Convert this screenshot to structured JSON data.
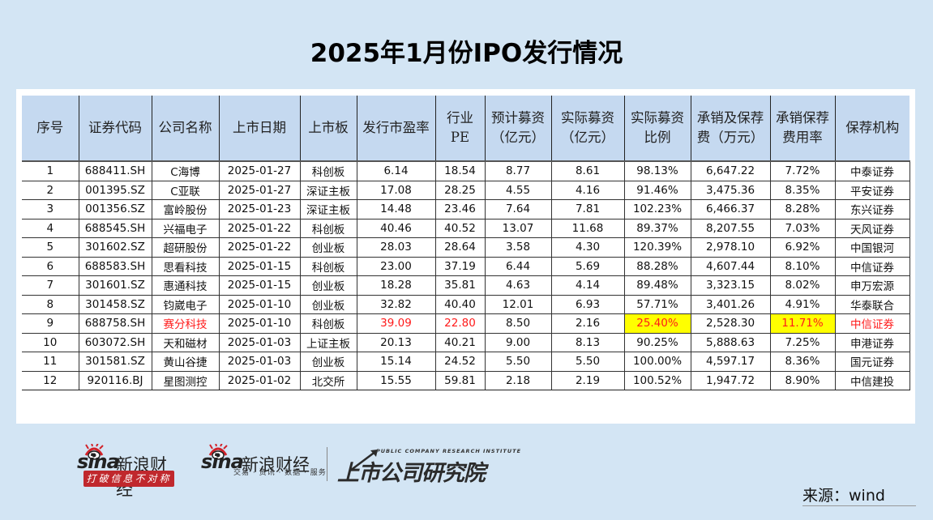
{
  "title": "2025年1月份IPO发行情况",
  "table": {
    "headers": [
      "序号",
      "证券代码",
      "公司名称",
      "上市日期",
      "上市板",
      "发行市盈率",
      "行业PE",
      "预计募资\n（亿元）",
      "实际募资\n（亿元）",
      "实际募资\n比例",
      "承销及保荐\n费（万元）",
      "承销保荐\n费用率",
      "保荐机构"
    ],
    "rows": [
      [
        "1",
        "688411.SH",
        "C海博",
        "2025-01-27",
        "科创板",
        "6.14",
        "18.54",
        "8.77",
        "8.61",
        "98.13%",
        "6,647.22",
        "7.72%",
        "中泰证券"
      ],
      [
        "2",
        "001395.SZ",
        "C亚联",
        "2025-01-27",
        "深证主板",
        "17.08",
        "28.25",
        "4.55",
        "4.16",
        "91.46%",
        "3,475.36",
        "8.35%",
        "平安证券"
      ],
      [
        "3",
        "001356.SZ",
        "富岭股份",
        "2025-01-23",
        "深证主板",
        "14.48",
        "23.46",
        "7.64",
        "7.81",
        "102.23%",
        "6,466.37",
        "8.28%",
        "东兴证券"
      ],
      [
        "4",
        "688545.SH",
        "兴福电子",
        "2025-01-22",
        "科创板",
        "40.46",
        "40.52",
        "13.07",
        "11.68",
        "89.37%",
        "8,207.55",
        "7.03%",
        "天风证券"
      ],
      [
        "5",
        "301602.SZ",
        "超研股份",
        "2025-01-22",
        "创业板",
        "28.03",
        "28.64",
        "3.58",
        "4.30",
        "120.39%",
        "2,978.10",
        "6.92%",
        "中国银河"
      ],
      [
        "6",
        "688583.SH",
        "思看科技",
        "2025-01-15",
        "科创板",
        "23.00",
        "37.19",
        "6.44",
        "5.69",
        "88.28%",
        "4,607.44",
        "8.10%",
        "中信证券"
      ],
      [
        "7",
        "301601.SZ",
        "惠通科技",
        "2025-01-15",
        "创业板",
        "18.28",
        "35.81",
        "4.63",
        "4.14",
        "89.48%",
        "3,323.15",
        "8.02%",
        "申万宏源"
      ],
      [
        "8",
        "301458.SZ",
        "钧崴电子",
        "2025-01-10",
        "创业板",
        "32.82",
        "40.40",
        "12.01",
        "6.93",
        "57.71%",
        "3,401.26",
        "4.91%",
        "华泰联合"
      ],
      [
        "9",
        "688758.SH",
        "赛分科技",
        "2025-01-10",
        "科创板",
        "39.09",
        "22.80",
        "8.50",
        "2.16",
        "25.40%",
        "2,528.30",
        "11.71%",
        "中信证券"
      ],
      [
        "10",
        "603072.SH",
        "天和磁材",
        "2025-01-03",
        "上证主板",
        "20.13",
        "40.21",
        "9.00",
        "8.13",
        "90.25%",
        "5,888.63",
        "7.25%",
        "申港证券"
      ],
      [
        "11",
        "301581.SZ",
        "黄山谷捷",
        "2025-01-03",
        "创业板",
        "15.14",
        "24.52",
        "5.50",
        "5.50",
        "100.00%",
        "4,597.17",
        "8.36%",
        "国元证券"
      ],
      [
        "12",
        "920116.BJ",
        "星图测控",
        "2025-01-02",
        "北交所",
        "15.55",
        "59.81",
        "2.18",
        "2.19",
        "100.52%",
        "1,947.72",
        "8.90%",
        "中信建投"
      ]
    ],
    "highlight": {
      "row_index": 8,
      "red_text_columns": [
        2,
        5,
        6,
        9,
        11,
        12
      ],
      "yellow_bg_columns": [
        9,
        11
      ],
      "red_color": "#ff1a1a",
      "yellow_color": "#ffff00"
    },
    "header_bg": "#c5d9f0"
  },
  "logos": {
    "sina1": {
      "brand": "sina",
      "name": "新浪财经",
      "slogan": "打破信息不对称"
    },
    "sina2": {
      "brand": "sina",
      "name": "新浪财经",
      "services": "交易 · 资讯 · 数据 · 服务"
    },
    "institute": {
      "en": "PUBLIC COMPANY RESEARCH INSTITUTE",
      "cn": "上市公司研究院"
    }
  },
  "source": "来源：wind",
  "colors": {
    "background": "#d3e5f4",
    "panel": "#ffffff",
    "brand_red": "#c0282d"
  }
}
